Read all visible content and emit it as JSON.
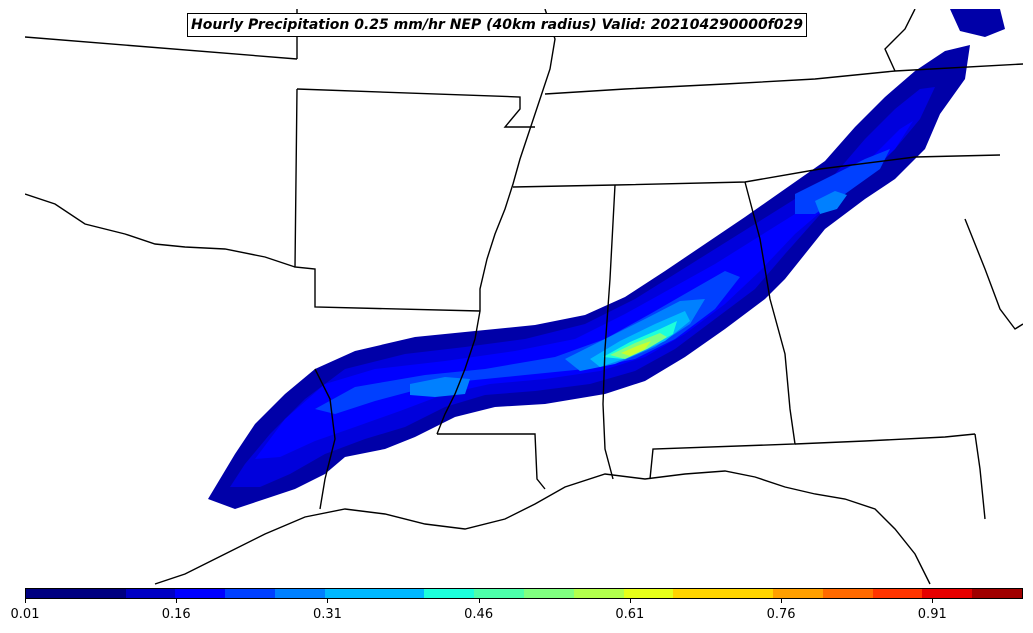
{
  "map": {
    "title": "Hourly Precipitation 0.25 mm/hr NEP (40km radius) Valid: 202104290000f029",
    "region": "Southeastern United States",
    "field": "neighborhood exceedance probability",
    "peak_location": "northern Alabama / Mississippi border",
    "probability_band": {
      "orientation": "southwest-northeast",
      "from": "southeast Texas",
      "to": "western Virginia"
    }
  },
  "colorbar": {
    "min": 0.01,
    "max": 1.0,
    "colormap": "jet",
    "colors": [
      "#000080",
      "#0000c4",
      "#0000ff",
      "#0040ff",
      "#0080ff",
      "#00b8ff",
      "#1cffdb",
      "#4dffaa",
      "#80ff80",
      "#b2ff4d",
      "#e6ff1a",
      "#ffd400",
      "#ff9f00",
      "#ff6a00",
      "#ff3500",
      "#e60000",
      "#a00000"
    ],
    "ticks": [
      "0.01",
      "0.16",
      "0.31",
      "0.46",
      "0.61",
      "0.76",
      "0.91"
    ]
  }
}
